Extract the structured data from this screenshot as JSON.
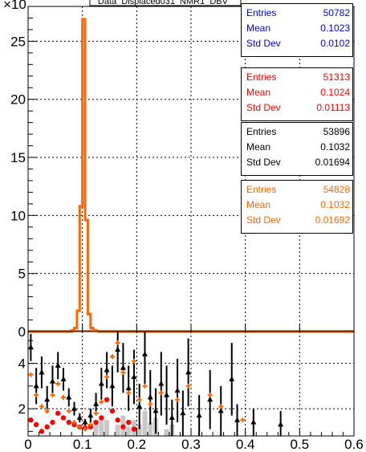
{
  "chart_data": {
    "type": "histogram",
    "title": "Data_Displaced031_NMR1_DBV_",
    "colors": {
      "blue": "#0000ff",
      "red": "#ff0000",
      "black": "#000000",
      "orange": "#ff6600",
      "gray": "#c8c8c8"
    },
    "top_panel": {
      "y_exponent_label": "×10",
      "yticks": [
        0,
        5,
        10,
        15,
        20,
        25
      ],
      "xlim": [
        0,
        0.6
      ],
      "ylim": [
        0,
        28
      ],
      "grid": true,
      "series": [
        {
          "color": "orange",
          "bin_width": 0.005,
          "bin_centers": [
            0.0825,
            0.0875,
            0.0925,
            0.0975,
            0.1025,
            0.1075,
            0.1125,
            0.1175,
            0.1225,
            0.1275
          ],
          "values": [
            0.1,
            0.3,
            1.8,
            10.8,
            26.9,
            9.6,
            1.5,
            0.3,
            0.12,
            0.05
          ]
        }
      ]
    },
    "bottom_panel": {
      "yticks": [
        2,
        4
      ],
      "xticks": [
        "0",
        "0.1",
        "0.2",
        "0.3",
        "0.4",
        "0.5",
        "0.6"
      ],
      "xlim": [
        0,
        0.6
      ],
      "ylim": [
        0.8,
        5.4
      ],
      "grid": true,
      "black_points": [
        {
          "x": 0.005,
          "y": 4.7,
          "e": 0.6
        },
        {
          "x": 0.015,
          "y": 3.0,
          "e": 0.8
        },
        {
          "x": 0.025,
          "y": 3.6,
          "e": 0.7
        },
        {
          "x": 0.035,
          "y": 2.4,
          "e": 0.6
        },
        {
          "x": 0.045,
          "y": 3.2,
          "e": 0.7
        },
        {
          "x": 0.055,
          "y": 3.9,
          "e": 0.6
        },
        {
          "x": 0.065,
          "y": 3.3,
          "e": 0.5
        },
        {
          "x": 0.075,
          "y": 2.5,
          "e": 0.4
        },
        {
          "x": 0.085,
          "y": 2.0,
          "e": 0.3
        },
        {
          "x": 0.095,
          "y": 1.6,
          "e": 0.2
        },
        {
          "x": 0.105,
          "y": 1.4,
          "e": 0.15
        },
        {
          "x": 0.115,
          "y": 1.7,
          "e": 0.3
        },
        {
          "x": 0.125,
          "y": 2.2,
          "e": 0.5
        },
        {
          "x": 0.135,
          "y": 3.1,
          "e": 0.7
        },
        {
          "x": 0.145,
          "y": 3.7,
          "e": 0.8
        },
        {
          "x": 0.155,
          "y": 3.0,
          "e": 0.9
        },
        {
          "x": 0.165,
          "y": 4.6,
          "e": 1.0
        },
        {
          "x": 0.175,
          "y": 3.8,
          "e": 1.1
        },
        {
          "x": 0.185,
          "y": 2.9,
          "e": 1.0
        },
        {
          "x": 0.195,
          "y": 3.4,
          "e": 1.2
        },
        {
          "x": 0.205,
          "y": 2.1,
          "e": 1.0
        },
        {
          "x": 0.215,
          "y": 4.4,
          "e": 1.3
        },
        {
          "x": 0.225,
          "y": 2.5,
          "e": 1.2
        },
        {
          "x": 0.235,
          "y": 1.9,
          "e": 1.0
        },
        {
          "x": 0.245,
          "y": 3.1,
          "e": 1.4
        },
        {
          "x": 0.255,
          "y": 2.6,
          "e": 1.3
        },
        {
          "x": 0.265,
          "y": 1.6,
          "e": 0.8
        },
        {
          "x": 0.275,
          "y": 2.8,
          "e": 1.4
        },
        {
          "x": 0.285,
          "y": 1.8,
          "e": 1.0
        },
        {
          "x": 0.295,
          "y": 3.6,
          "e": 1.5
        },
        {
          "x": 0.315,
          "y": 1.7,
          "e": 0.9
        },
        {
          "x": 0.335,
          "y": 2.4,
          "e": 1.3
        },
        {
          "x": 0.355,
          "y": 1.9,
          "e": 1.1
        },
        {
          "x": 0.375,
          "y": 3.3,
          "e": 1.6
        },
        {
          "x": 0.385,
          "y": 1.5,
          "e": 0.7
        },
        {
          "x": 0.415,
          "y": 1.4,
          "e": 0.6
        },
        {
          "x": 0.465,
          "y": 1.3,
          "e": 0.6
        }
      ],
      "red_points": [
        {
          "x": 0.005,
          "y": 1.5
        },
        {
          "x": 0.015,
          "y": 1.3
        },
        {
          "x": 0.025,
          "y": 1.0
        },
        {
          "x": 0.035,
          "y": 1.2
        },
        {
          "x": 0.045,
          "y": 1.4
        },
        {
          "x": 0.055,
          "y": 1.8
        },
        {
          "x": 0.065,
          "y": 1.6
        },
        {
          "x": 0.075,
          "y": 1.4
        },
        {
          "x": 0.085,
          "y": 1.3
        },
        {
          "x": 0.095,
          "y": 1.2
        },
        {
          "x": 0.105,
          "y": 1.15
        },
        {
          "x": 0.115,
          "y": 1.2
        },
        {
          "x": 0.125,
          "y": 1.4
        },
        {
          "x": 0.135,
          "y": 1.6
        },
        {
          "x": 0.145,
          "y": 2.4
        },
        {
          "x": 0.155,
          "y": 1.9
        },
        {
          "x": 0.165,
          "y": 1.5
        },
        {
          "x": 0.175,
          "y": 1.2
        },
        {
          "x": 0.185,
          "y": 1.4
        },
        {
          "x": 0.195,
          "y": 1.1
        }
      ],
      "orange_points": [
        {
          "x": 0.005,
          "y": 3.5
        },
        {
          "x": 0.015,
          "y": 2.6
        },
        {
          "x": 0.025,
          "y": 2.1
        },
        {
          "x": 0.035,
          "y": 1.9
        },
        {
          "x": 0.045,
          "y": 2.6
        },
        {
          "x": 0.055,
          "y": 3.1
        },
        {
          "x": 0.065,
          "y": 2.5
        },
        {
          "x": 0.075,
          "y": 1.9
        },
        {
          "x": 0.085,
          "y": 1.4
        },
        {
          "x": 0.095,
          "y": 1.2
        },
        {
          "x": 0.105,
          "y": 1.1
        },
        {
          "x": 0.115,
          "y": 1.3
        },
        {
          "x": 0.125,
          "y": 1.8
        },
        {
          "x": 0.135,
          "y": 2.3
        },
        {
          "x": 0.145,
          "y": 3.4
        },
        {
          "x": 0.155,
          "y": 4.3
        },
        {
          "x": 0.165,
          "y": 4.9
        },
        {
          "x": 0.175,
          "y": 3.6
        },
        {
          "x": 0.185,
          "y": 2.7
        },
        {
          "x": 0.195,
          "y": 4.1
        },
        {
          "x": 0.205,
          "y": 2.4
        },
        {
          "x": 0.215,
          "y": 3.0
        },
        {
          "x": 0.225,
          "y": 2.2
        },
        {
          "x": 0.245,
          "y": 2.7
        },
        {
          "x": 0.275,
          "y": 2.4
        },
        {
          "x": 0.295,
          "y": 3.0
        },
        {
          "x": 0.335,
          "y": 2.6
        },
        {
          "x": 0.355,
          "y": 2.1
        },
        {
          "x": 0.395,
          "y": 1.5
        }
      ],
      "gray_bars": [
        {
          "x": 0.125,
          "y": 1.4
        },
        {
          "x": 0.135,
          "y": 1.6
        },
        {
          "x": 0.145,
          "y": 1.5
        },
        {
          "x": 0.165,
          "y": 1.3
        },
        {
          "x": 0.175,
          "y": 1.7
        },
        {
          "x": 0.185,
          "y": 1.2
        },
        {
          "x": 0.195,
          "y": 1.5
        },
        {
          "x": 0.205,
          "y": 1.3
        },
        {
          "x": 0.215,
          "y": 1.9
        },
        {
          "x": 0.225,
          "y": 1.4
        },
        {
          "x": 0.235,
          "y": 1.6
        },
        {
          "x": 0.255,
          "y": 1.1
        },
        {
          "x": 0.265,
          "y": 1.3
        }
      ]
    },
    "stats_boxes": [
      {
        "color": "blue",
        "entries_label": "Entries",
        "entries": "50782",
        "mean_label": "Mean",
        "mean": "0.1023",
        "std_label": "Std Dev",
        "std": "0.0102"
      },
      {
        "color": "red",
        "entries_label": "Entries",
        "entries": "51313",
        "mean_label": "Mean",
        "mean": "0.1024",
        "std_label": "Std Dev",
        "std": "0.01113"
      },
      {
        "color": "black",
        "entries_label": "Entries",
        "entries": "53896",
        "mean_label": "Mean",
        "mean": "0.1032",
        "std_label": "Std Dev",
        "std": "0.01694"
      },
      {
        "color": "orange",
        "entries_label": "Entries",
        "entries": "54828",
        "mean_label": "Mean",
        "mean": "0.1032",
        "std_label": "Std Dev",
        "std": "0.01692"
      }
    ]
  }
}
